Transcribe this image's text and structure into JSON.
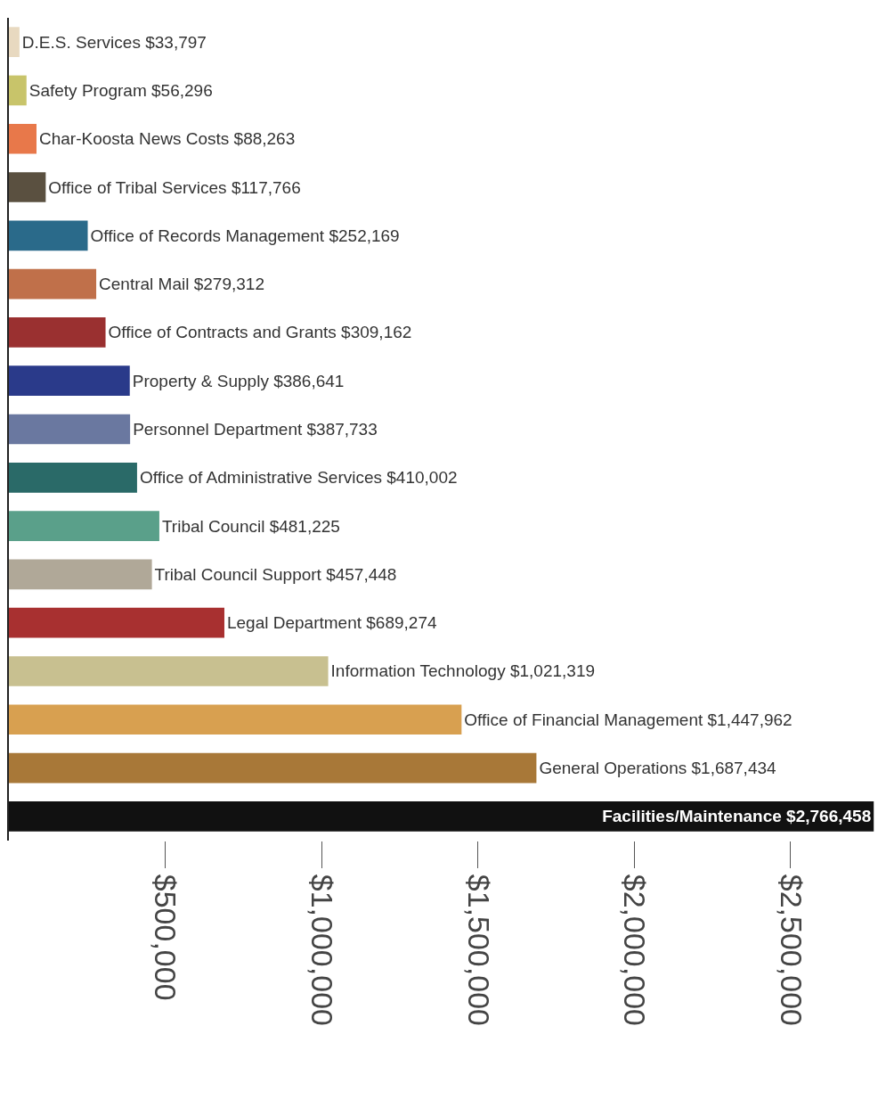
{
  "chart_data": {
    "type": "bar",
    "orientation": "horizontal",
    "categories": [
      "D.E.S. Services",
      "Safety Program",
      "Char-Koosta News Costs",
      "Office of Tribal Services",
      "Office of Records Management",
      "Central Mail",
      "Office of Contracts and Grants",
      "Property & Supply",
      "Personnel Department",
      "Office of Administrative Services",
      "Tribal Council",
      "Tribal Council Support",
      "Legal Department",
      "Information Technology",
      "Office of Financial Management",
      "General Operations",
      "Facilities/Maintenance"
    ],
    "values": [
      33797,
      56296,
      88263,
      117766,
      252169,
      279312,
      309162,
      386641,
      387733,
      410002,
      481225,
      457448,
      689274,
      1021319,
      1447962,
      1687434,
      2766458
    ],
    "value_labels": [
      "$33,797",
      "$56,296",
      "$88,263",
      "$117,766",
      "$252,169",
      "$279,312",
      "$309,162",
      "$386,641",
      "$387,733",
      "$410,002",
      "$481,225",
      "$457,448",
      "$689,274",
      "$1,021,319",
      "$1,447,962",
      "$1,687,434",
      "$2,766,458"
    ],
    "colors": [
      "#e8d9c0",
      "#c8c46a",
      "#e8784a",
      "#5a5040",
      "#2a6a8a",
      "#c0704a",
      "#9a3030",
      "#2a3a8a",
      "#6a78a0",
      "#2a6a68",
      "#5aa08a",
      "#b0a898",
      "#a83030",
      "#c8c090",
      "#d8a050",
      "#a87838",
      "#111111"
    ],
    "xlim": [
      0,
      2800000
    ],
    "xticks": [
      {
        "value": 500000,
        "label": "$500,000"
      },
      {
        "value": 1000000,
        "label": "$1,000,000"
      },
      {
        "value": 1500000,
        "label": "$1,500,000"
      },
      {
        "value": 2000000,
        "label": "$2,000,000"
      },
      {
        "value": 2500000,
        "label": "$2,500,000"
      }
    ],
    "tick_labels": "x",
    "legend": false
  }
}
